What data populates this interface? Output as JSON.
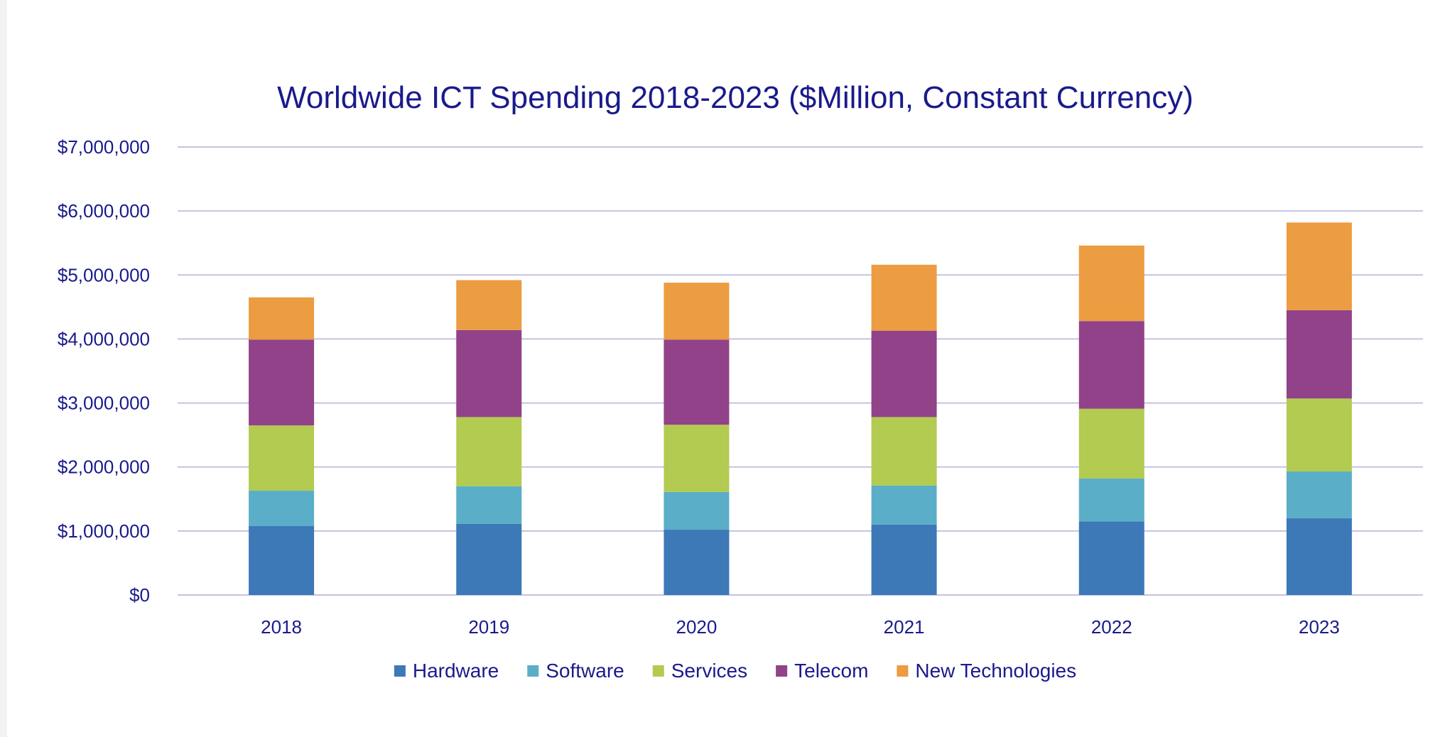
{
  "chart_data": {
    "type": "bar",
    "stacked": true,
    "title": "Worldwide ICT Spending 2018-2023 ($Million, Constant Currency)",
    "xlabel": "",
    "ylabel": "",
    "categories": [
      "2018",
      "2019",
      "2020",
      "2021",
      "2022",
      "2023"
    ],
    "ylim": [
      0,
      7000000
    ],
    "yticks": [
      0,
      1000000,
      2000000,
      3000000,
      4000000,
      5000000,
      6000000,
      7000000
    ],
    "ytick_labels": [
      "$0",
      "$1,000,000",
      "$2,000,000",
      "$3,000,000",
      "$4,000,000",
      "$5,000,000",
      "$6,000,000",
      "$7,000,000"
    ],
    "grid": true,
    "legend_position": "bottom",
    "series": [
      {
        "name": "Hardware",
        "color": "#3d78b7",
        "values": [
          1080000,
          1110000,
          1020000,
          1100000,
          1150000,
          1200000
        ]
      },
      {
        "name": "Software",
        "color": "#5aaec7",
        "values": [
          550000,
          590000,
          590000,
          610000,
          670000,
          730000
        ]
      },
      {
        "name": "Services",
        "color": "#b2cb50",
        "values": [
          1020000,
          1080000,
          1050000,
          1070000,
          1090000,
          1140000
        ]
      },
      {
        "name": "Telecom",
        "color": "#914289",
        "values": [
          1340000,
          1360000,
          1330000,
          1350000,
          1370000,
          1380000
        ]
      },
      {
        "name": "New Technologies",
        "color": "#ec9c41",
        "values": [
          660000,
          780000,
          890000,
          1030000,
          1180000,
          1370000
        ]
      }
    ]
  }
}
